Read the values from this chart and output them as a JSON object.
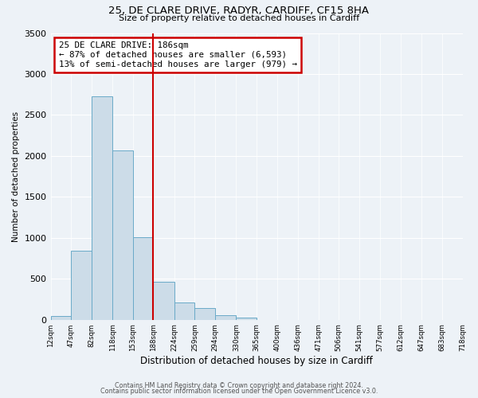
{
  "title1": "25, DE CLARE DRIVE, RADYR, CARDIFF, CF15 8HA",
  "title2": "Size of property relative to detached houses in Cardiff",
  "xlabel": "Distribution of detached houses by size in Cardiff",
  "ylabel": "Number of detached properties",
  "bar_edges": [
    12,
    47,
    82,
    118,
    153,
    188,
    224,
    259,
    294,
    330,
    365,
    400,
    436,
    471,
    506,
    541,
    577,
    612,
    647,
    683,
    718
  ],
  "bar_heights": [
    50,
    840,
    2730,
    2070,
    1010,
    460,
    215,
    145,
    55,
    25,
    0,
    0,
    0,
    0,
    0,
    0,
    0,
    0,
    0,
    0
  ],
  "bar_color": "#ccdce8",
  "bar_edgecolor": "#6aaac8",
  "vline_x": 188,
  "vline_color": "#cc0000",
  "ylim": [
    0,
    3500
  ],
  "xlim": [
    12,
    718
  ],
  "annotation_box_text": "25 DE CLARE DRIVE: 186sqm\n← 87% of detached houses are smaller (6,593)\n13% of semi-detached houses are larger (979) →",
  "annotation_box_color": "#cc0000",
  "annotation_box_facecolor": "white",
  "footer1": "Contains HM Land Registry data © Crown copyright and database right 2024.",
  "footer2": "Contains public sector information licensed under the Open Government Licence v3.0.",
  "tick_labels": [
    "12sqm",
    "47sqm",
    "82sqm",
    "118sqm",
    "153sqm",
    "188sqm",
    "224sqm",
    "259sqm",
    "294sqm",
    "330sqm",
    "365sqm",
    "400sqm",
    "436sqm",
    "471sqm",
    "506sqm",
    "541sqm",
    "577sqm",
    "612sqm",
    "647sqm",
    "683sqm",
    "718sqm"
  ],
  "background_color": "#edf2f7"
}
